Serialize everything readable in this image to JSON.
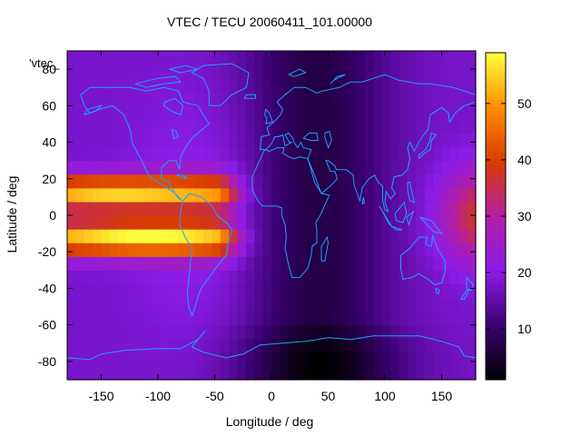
{
  "chart_data": {
    "type": "heatmap",
    "title": "VTEC / TECU 20060411_101.00000",
    "xlabel": "Longitude / deg",
    "ylabel": "Latitude / deg",
    "key_label": "'vtec_",
    "xlim": [
      -180,
      180
    ],
    "ylim": [
      -90,
      90
    ],
    "x_ticks": [
      -150,
      -100,
      -50,
      0,
      50,
      100,
      150
    ],
    "y_ticks": [
      -80,
      -60,
      -40,
      -20,
      0,
      20,
      40,
      60,
      80
    ],
    "x_tick_labels": [
      "-150",
      "-100",
      "-50",
      "0",
      "50",
      "100",
      "150"
    ],
    "y_tick_labels": [
      "-80",
      "-60",
      "-40",
      "-20",
      "0",
      "20",
      "40",
      "60",
      "80"
    ],
    "colorbar": {
      "range": [
        1,
        59
      ],
      "ticks": [
        10,
        20,
        30,
        40,
        50
      ],
      "tick_labels": [
        "10",
        "20",
        "30",
        "40",
        "50"
      ],
      "palette": [
        "#000000",
        "#3a0070",
        "#8c1ce8",
        "#b21ea6",
        "#d83c00",
        "#ff8c00",
        "#ffff3c"
      ]
    },
    "grid": false,
    "z_approx": {
      "lon_step": 10,
      "lat_step": 10,
      "background_value": 18,
      "features": [
        {
          "label": "crest_north",
          "lon": [
            -180,
            -60
          ],
          "lat": [
            5,
            20
          ],
          "peak_value": 55
        },
        {
          "label": "crest_south",
          "lon": [
            -180,
            -60
          ],
          "lat": [
            -20,
            -5
          ],
          "peak_value": 58
        },
        {
          "label": "east_edge_maximum",
          "lon": [
            140,
            180
          ],
          "lat": [
            -20,
            20
          ],
          "peak_value": 38
        },
        {
          "label": "night_side_minimum",
          "lon": [
            -40,
            110
          ],
          "lat": [
            -90,
            90
          ],
          "min_value": 4
        },
        {
          "label": "south_polar_minimum",
          "lon": [
            -30,
            120
          ],
          "lat": [
            -90,
            -60
          ],
          "min_value": 1
        }
      ]
    }
  }
}
